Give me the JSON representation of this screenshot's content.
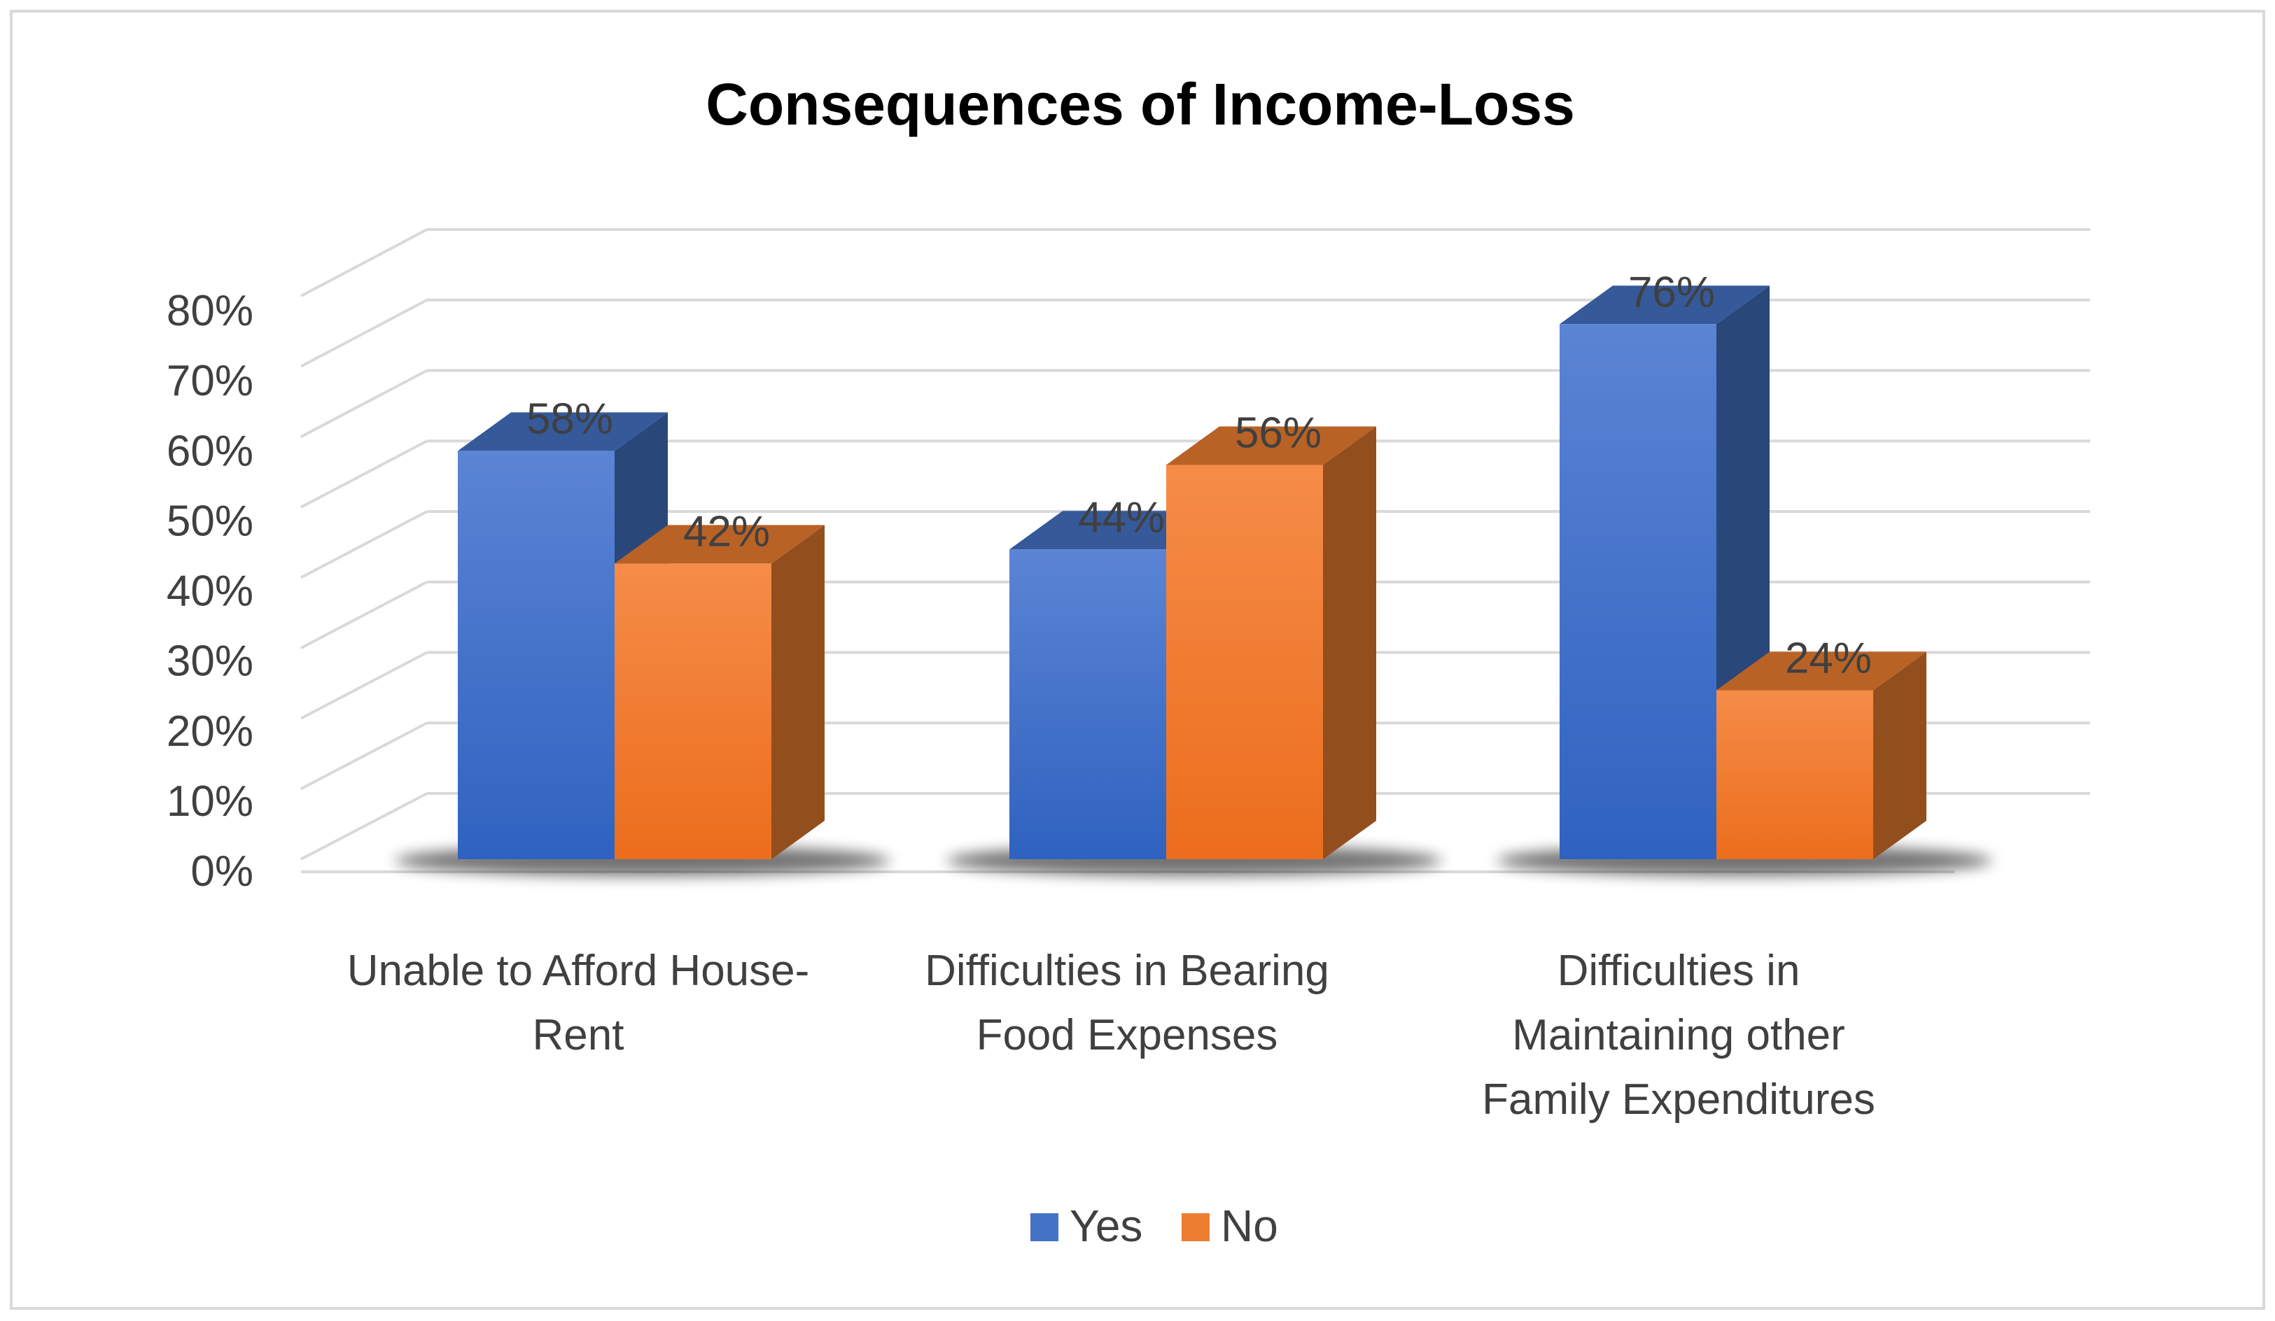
{
  "chart_data": {
    "type": "bar",
    "title": "Consequences of Income-Loss",
    "categories": [
      [
        "Unable to Afford House-",
        "Rent"
      ],
      [
        "Difficulties in Bearing",
        "Food Expenses"
      ],
      [
        "Difficulties in",
        "Maintaining other",
        "Family Expenditures"
      ]
    ],
    "series": [
      {
        "name": "Yes",
        "values": [
          58,
          44,
          76
        ],
        "labels": [
          "58%",
          "44%",
          "76%"
        ]
      },
      {
        "name": "No",
        "values": [
          42,
          56,
          24
        ],
        "labels": [
          "42%",
          "56%",
          "24%"
        ]
      }
    ],
    "y_ticks": [
      "0%",
      "10%",
      "20%",
      "30%",
      "40%",
      "50%",
      "60%",
      "70%",
      "80%"
    ],
    "ylim": [
      0,
      80
    ],
    "grid": true,
    "legend_position": "bottom",
    "style": "3d-column"
  },
  "colors": {
    "Yes": "#4472c4",
    "No": "#ed7d31",
    "gridline": "#d9d9d9",
    "text": "#404040"
  }
}
